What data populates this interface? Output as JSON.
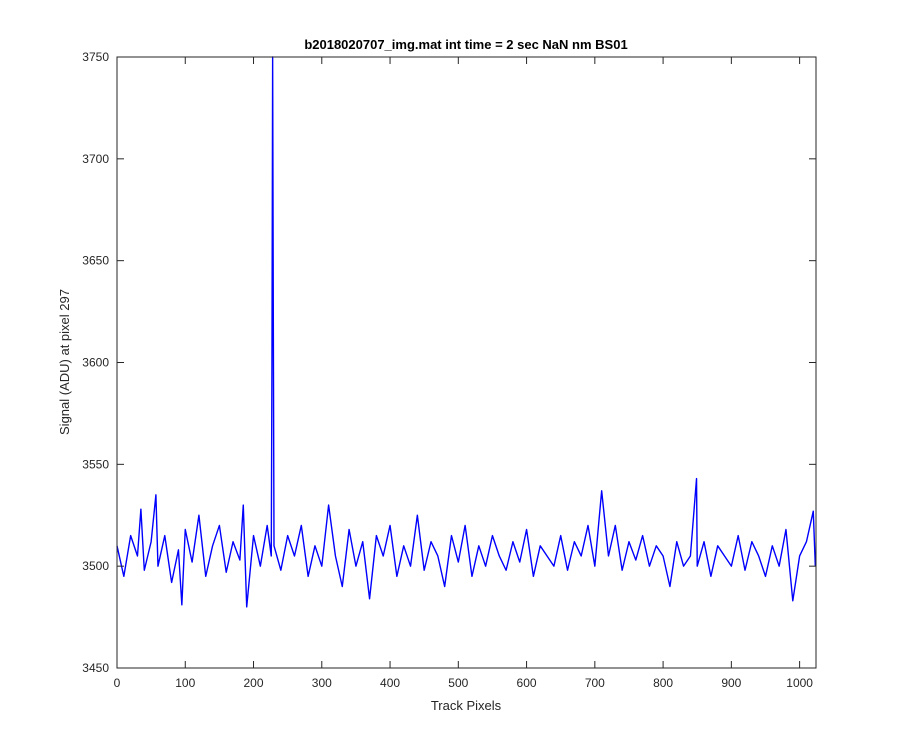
{
  "chart_data": {
    "type": "line",
    "title": "b2018020707_img.mat int time = 2 sec  NaN nm BS01",
    "xlabel": "Track Pixels",
    "ylabel": "Signal (ADU) at pixel 297",
    "xlim": [
      0,
      1024
    ],
    "ylim": [
      3450,
      3750
    ],
    "x_ticks": [
      0,
      100,
      200,
      300,
      400,
      500,
      600,
      700,
      800,
      900,
      1000
    ],
    "y_ticks": [
      3450,
      3500,
      3550,
      3600,
      3650,
      3700,
      3750
    ],
    "x_tick_labels": [
      "0",
      "100",
      "200",
      "300",
      "400",
      "500",
      "600",
      "700",
      "800",
      "900",
      "1000"
    ],
    "y_tick_labels": [
      "3450",
      "3500",
      "3550",
      "3600",
      "3650",
      "3700",
      "3750"
    ],
    "grid": false,
    "series": [
      {
        "color": "#0000ff",
        "x": [
          0,
          10,
          20,
          30,
          35,
          40,
          50,
          57,
          60,
          70,
          80,
          90,
          95,
          100,
          110,
          120,
          130,
          140,
          150,
          160,
          170,
          180,
          185,
          190,
          200,
          210,
          220,
          226,
          227,
          228,
          229,
          230,
          240,
          250,
          260,
          270,
          280,
          290,
          300,
          310,
          320,
          330,
          340,
          350,
          360,
          370,
          380,
          390,
          400,
          410,
          420,
          430,
          440,
          450,
          460,
          470,
          480,
          490,
          500,
          510,
          520,
          530,
          540,
          550,
          560,
          570,
          580,
          590,
          600,
          610,
          620,
          630,
          640,
          650,
          660,
          670,
          680,
          690,
          700,
          710,
          720,
          730,
          740,
          750,
          760,
          770,
          780,
          790,
          800,
          810,
          820,
          830,
          840,
          849,
          850,
          860,
          870,
          880,
          890,
          900,
          910,
          920,
          930,
          940,
          950,
          960,
          970,
          980,
          990,
          1000,
          1010,
          1020,
          1023
        ],
        "values": [
          3510,
          3495,
          3515,
          3505,
          3528,
          3498,
          3512,
          3535,
          3500,
          3515,
          3492,
          3508,
          3481,
          3518,
          3502,
          3525,
          3495,
          3510,
          3520,
          3497,
          3512,
          3503,
          3530,
          3480,
          3515,
          3500,
          3520,
          3505,
          3600,
          3750,
          3620,
          3510,
          3498,
          3515,
          3505,
          3520,
          3495,
          3510,
          3500,
          3530,
          3505,
          3490,
          3518,
          3500,
          3512,
          3484,
          3515,
          3505,
          3520,
          3495,
          3510,
          3500,
          3525,
          3498,
          3512,
          3505,
          3490,
          3515,
          3502,
          3520,
          3495,
          3510,
          3500,
          3515,
          3505,
          3498,
          3512,
          3502,
          3518,
          3495,
          3510,
          3505,
          3500,
          3515,
          3498,
          3512,
          3505,
          3520,
          3500,
          3537,
          3505,
          3520,
          3498,
          3512,
          3503,
          3515,
          3500,
          3510,
          3505,
          3490,
          3512,
          3500,
          3505,
          3543,
          3500,
          3512,
          3495,
          3510,
          3505,
          3500,
          3515,
          3498,
          3512,
          3505,
          3495,
          3510,
          3500,
          3518,
          3483,
          3505,
          3512,
          3527,
          3500
        ]
      }
    ]
  }
}
